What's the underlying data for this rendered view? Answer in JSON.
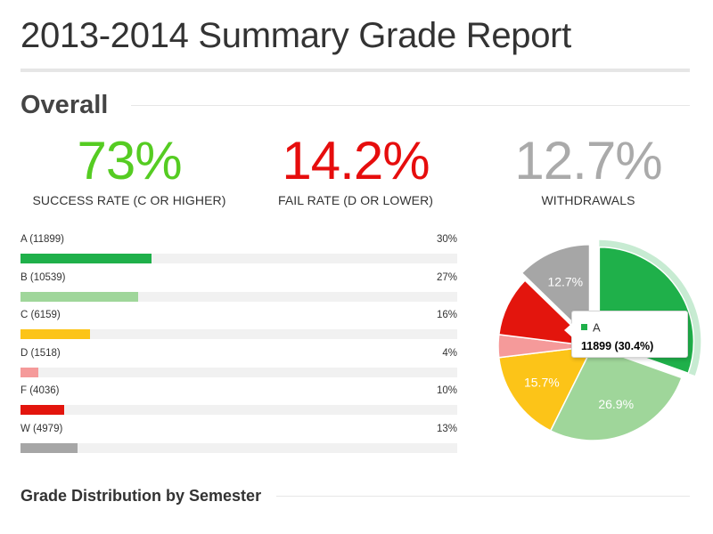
{
  "header": {
    "title": "2013-2014 Summary Grade Report"
  },
  "overall": {
    "heading": "Overall",
    "stats": {
      "success": {
        "value": "73%",
        "label": "SUCCESS RATE (C OR HIGHER)",
        "color": "#55cc22"
      },
      "fail": {
        "value": "14.2%",
        "label": "FAIL RATE (D OR LOWER)",
        "color": "#e60d0d"
      },
      "withdrawals": {
        "value": "12.7%",
        "label": "WITHDRAWALS",
        "color": "#aaaaaa"
      }
    }
  },
  "grades": [
    {
      "label": "A (11899)",
      "pct_text": "30%",
      "fraction": 0.3,
      "color": "#1fb04a"
    },
    {
      "label": "B (10539)",
      "pct_text": "27%",
      "fraction": 0.27,
      "color": "#9fd69a"
    },
    {
      "label": "C (6159)",
      "pct_text": "16%",
      "fraction": 0.16,
      "color": "#fcc418"
    },
    {
      "label": "D (1518)",
      "pct_text": "4%",
      "fraction": 0.04,
      "color": "#f59a9a"
    },
    {
      "label": "F (4036)",
      "pct_text": "10%",
      "fraction": 0.1,
      "color": "#e3150d"
    },
    {
      "label": "W (4979)",
      "pct_text": "13%",
      "fraction": 0.13,
      "color": "#a6a6a6"
    }
  ],
  "chart_data": {
    "type": "pie",
    "categories": [
      "A",
      "B",
      "C",
      "D",
      "F",
      "W"
    ],
    "values": [
      30.4,
      26.9,
      15.7,
      3.9,
      10.3,
      12.7
    ],
    "slice_labels": [
      "",
      "26.9%",
      "15.7%",
      "",
      "",
      "12.7%"
    ],
    "colors": [
      "#1fb04a",
      "#9fd69a",
      "#fcc418",
      "#f59a9a",
      "#e3150d",
      "#a6a6a6"
    ],
    "highlighted": "A",
    "exploded": [
      "A",
      "W"
    ]
  },
  "tooltip": {
    "name": "A",
    "value": "11899 (30.4%)",
    "color": "#1fb04a"
  },
  "distribution": {
    "heading": "Grade Distribution by Semester"
  }
}
